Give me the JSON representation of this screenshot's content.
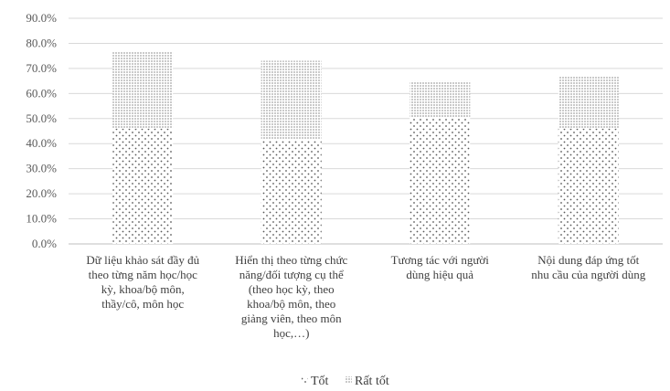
{
  "chart_data": {
    "type": "bar",
    "stacked": true,
    "categories": [
      [
        "Dữ liệu khảo sát đầy đủ",
        "theo từng năm học/học",
        "kỳ, khoa/bộ môn,",
        "thầy/cô, môn học"
      ],
      [
        "Hiển thị theo từng chức",
        "năng/đối tượng cụ thể",
        "(theo học kỳ, theo",
        "khoa/bộ môn, theo",
        "giảng viên, theo môn",
        "học,…)"
      ],
      [
        "Tương tác với người",
        "dùng hiệu quả"
      ],
      [
        "Nội dung đáp ứng tốt",
        "nhu cầu của người dùng"
      ]
    ],
    "series": [
      {
        "name": "Tốt",
        "values": [
          46.0,
          41.5,
          50.5,
          46.0
        ],
        "pattern": "sparse-dots"
      },
      {
        "name": "Rất tốt",
        "values": [
          30.5,
          31.5,
          14.5,
          21.0
        ],
        "pattern": "dense-dots"
      }
    ],
    "ylim": [
      0,
      90
    ],
    "yticks": [
      "0.0%",
      "10.0%",
      "20.0%",
      "30.0%",
      "40.0%",
      "50.0%",
      "60.0%",
      "70.0%",
      "80.0%",
      "90.0%"
    ],
    "grid": true,
    "legend_position": "bottom",
    "colors": {
      "grid": "#d9d9d9",
      "axis": "#bfbfbf",
      "dots": "#595959",
      "text": "#404040"
    }
  }
}
